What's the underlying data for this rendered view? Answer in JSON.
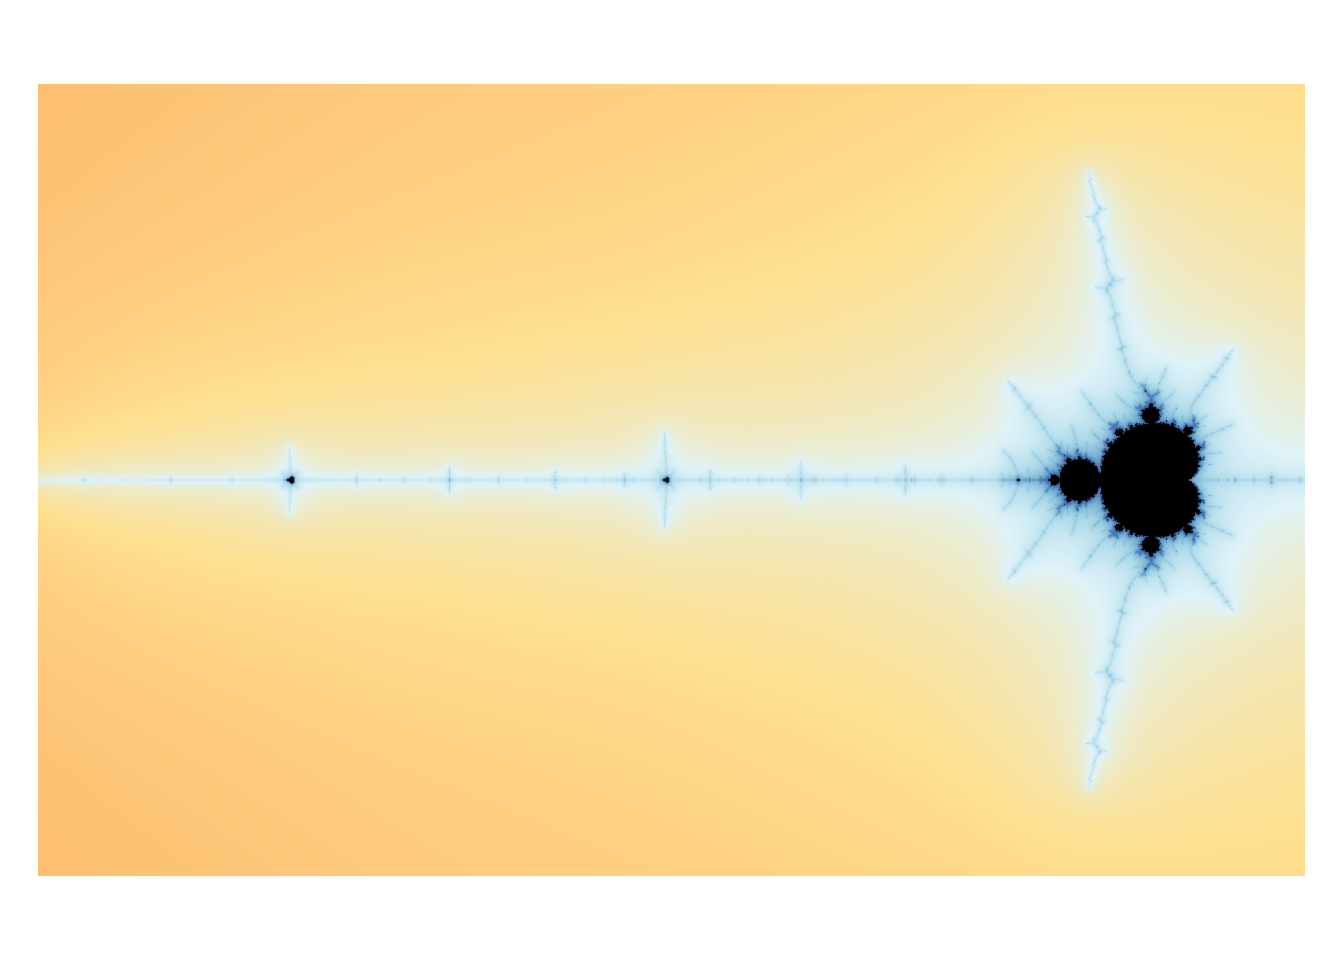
{
  "image": {
    "subject": "fractal",
    "background_color": "#ffffff",
    "interior_color": "#000000",
    "palette": [
      "#a50026",
      "#d73027",
      "#f46d43",
      "#fdae61",
      "#fee090",
      "#e0f3f8",
      "#abd9e9",
      "#74add1",
      "#4575b4"
    ]
  },
  "fractal": {
    "type": "mandelbrot",
    "re_range": [
      -1.995,
      -1.725
    ],
    "im_range": [
      -0.0844,
      0.0844
    ],
    "max_iterations": 180
  }
}
